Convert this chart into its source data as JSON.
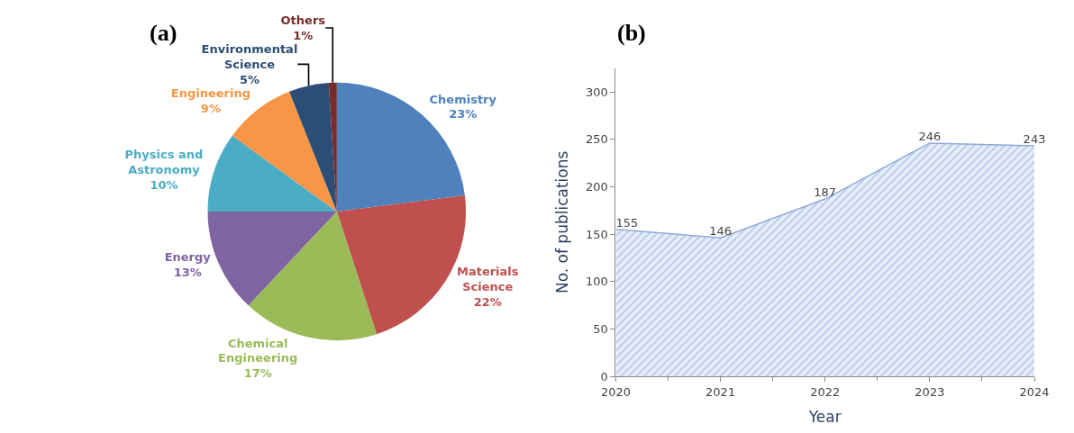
{
  "chart_data": [
    {
      "type": "pie",
      "title": "(a)",
      "categories": [
        "Chemistry",
        "Materials Science",
        "Chemical Engineering",
        "Energy",
        "Physics and Astronomy",
        "Engineering",
        "Environmental Science",
        "Others"
      ],
      "values": [
        23,
        22,
        17,
        13,
        10,
        9,
        5,
        1
      ],
      "colors": [
        "#4f81bd",
        "#c0504d",
        "#9bbb59",
        "#8064a2",
        "#4bacc6",
        "#f79646",
        "#2c4d75",
        "#772c2a"
      ],
      "value_labels": [
        "23%",
        "22%",
        "17%",
        "13%",
        "10%",
        "9%",
        "5%",
        "1%"
      ]
    },
    {
      "type": "area",
      "title": "(b)",
      "xlabel": "Year",
      "ylabel": "No. of publications",
      "x": [
        2020,
        2021,
        2022,
        2023,
        2024
      ],
      "series": [
        {
          "color": "#8eaadb",
          "values": [
            155,
            146,
            187,
            246,
            243
          ]
        }
      ],
      "xlim": [
        2020,
        2024
      ],
      "xticks": [
        2020,
        2021,
        2022,
        2023,
        2024
      ],
      "ylim": [
        0,
        325
      ],
      "yticks": [
        0,
        50,
        100,
        150,
        200,
        250,
        300
      ],
      "data_labels": true
    }
  ]
}
